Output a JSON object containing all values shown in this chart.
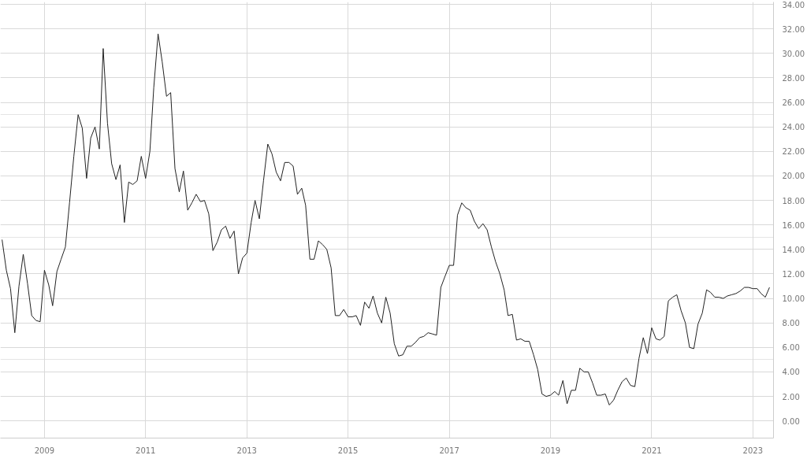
{
  "chart_data": {
    "type": "line",
    "x": [
      "2008-03",
      "2008-04",
      "2008-05",
      "2008-06",
      "2008-07",
      "2008-08",
      "2008-09",
      "2008-10",
      "2008-11",
      "2008-12",
      "2009-01",
      "2009-02",
      "2009-03",
      "2009-04",
      "2009-05",
      "2009-06",
      "2009-07",
      "2009-08",
      "2009-09",
      "2009-10",
      "2009-11",
      "2009-12",
      "2010-01",
      "2010-02",
      "2010-03",
      "2010-04",
      "2010-05",
      "2010-06",
      "2010-07",
      "2010-08",
      "2010-09",
      "2010-10",
      "2010-11",
      "2010-12",
      "2011-01",
      "2011-02",
      "2011-03",
      "2011-04",
      "2011-05",
      "2011-06",
      "2011-07",
      "2011-08",
      "2011-09",
      "2011-10",
      "2011-11",
      "2011-12",
      "2012-01",
      "2012-02",
      "2012-03",
      "2012-04",
      "2012-05",
      "2012-06",
      "2012-07",
      "2012-08",
      "2012-09",
      "2012-10",
      "2012-11",
      "2012-12",
      "2013-01",
      "2013-02",
      "2013-03",
      "2013-04",
      "2013-05",
      "2013-06",
      "2013-07",
      "2013-08",
      "2013-09",
      "2013-10",
      "2013-11",
      "2013-12",
      "2014-01",
      "2014-02",
      "2014-03",
      "2014-04",
      "2014-05",
      "2014-06",
      "2014-07",
      "2014-08",
      "2014-09",
      "2014-10",
      "2014-11",
      "2014-12",
      "2015-01",
      "2015-02",
      "2015-03",
      "2015-04",
      "2015-05",
      "2015-06",
      "2015-07",
      "2015-08",
      "2015-09",
      "2015-10",
      "2015-11",
      "2015-12",
      "2016-01",
      "2016-02",
      "2016-03",
      "2016-04",
      "2016-05",
      "2016-06",
      "2016-07",
      "2016-08",
      "2016-09",
      "2016-10",
      "2016-11",
      "2016-12",
      "2017-01",
      "2017-02",
      "2017-03",
      "2017-04",
      "2017-05",
      "2017-06",
      "2017-07",
      "2017-08",
      "2017-09",
      "2017-10",
      "2017-11",
      "2017-12",
      "2018-01",
      "2018-02",
      "2018-03",
      "2018-04",
      "2018-05",
      "2018-06",
      "2018-07",
      "2018-08",
      "2018-09",
      "2018-10",
      "2018-11",
      "2018-12",
      "2019-01",
      "2019-02",
      "2019-03",
      "2019-04",
      "2019-05",
      "2019-06",
      "2019-07",
      "2019-08",
      "2019-09",
      "2019-10",
      "2019-11",
      "2019-12",
      "2020-01",
      "2020-02",
      "2020-03",
      "2020-04",
      "2020-05",
      "2020-06",
      "2020-07",
      "2020-08",
      "2020-09",
      "2020-10",
      "2020-11",
      "2020-12",
      "2021-01",
      "2021-02",
      "2021-03",
      "2021-04",
      "2021-05",
      "2021-06",
      "2021-07",
      "2021-08",
      "2021-09",
      "2021-10",
      "2021-11",
      "2021-12",
      "2022-01",
      "2022-02",
      "2022-03",
      "2022-04",
      "2022-05",
      "2022-06",
      "2022-07",
      "2022-08",
      "2022-09",
      "2022-10",
      "2022-11",
      "2022-12",
      "2023-01",
      "2023-02",
      "2023-03",
      "2023-04",
      "2023-05"
    ],
    "series": [
      {
        "color": "#222222",
        "values": [
          14.8,
          12.3,
          10.8,
          7.2,
          11.0,
          13.6,
          11.2,
          8.6,
          8.2,
          8.1,
          12.3,
          11.1,
          9.4,
          12.2,
          13.2,
          14.2,
          17.8,
          21.6,
          25.0,
          23.9,
          19.8,
          23.1,
          24.0,
          22.2,
          30.4,
          24.3,
          21.0,
          19.7,
          20.9,
          16.2,
          19.5,
          19.3,
          19.6,
          21.6,
          19.8,
          22.0,
          27.2,
          31.6,
          29.3,
          26.5,
          26.8,
          20.6,
          18.7,
          20.4,
          17.2,
          17.8,
          18.5,
          17.9,
          18.0,
          16.9,
          13.9,
          14.6,
          15.6,
          15.9,
          14.9,
          15.5,
          12.0,
          13.3,
          13.7,
          16.2,
          18.0,
          16.5,
          19.6,
          22.6,
          21.8,
          20.3,
          19.6,
          21.1,
          21.1,
          20.8,
          18.5,
          19.0,
          17.6,
          13.2,
          13.2,
          14.7,
          14.4,
          14.0,
          12.5,
          8.6,
          8.6,
          9.1,
          8.5,
          8.5,
          8.6,
          7.8,
          9.7,
          9.2,
          10.2,
          8.8,
          8.0,
          10.1,
          8.8,
          6.3,
          5.3,
          5.4,
          6.1,
          6.1,
          6.4,
          6.8,
          6.9,
          7.2,
          7.1,
          7.0,
          10.9,
          11.8,
          12.7,
          12.7,
          16.8,
          17.8,
          17.4,
          17.2,
          16.3,
          15.7,
          16.1,
          15.6,
          14.2,
          13.0,
          12.0,
          10.7,
          8.6,
          8.7,
          6.6,
          6.7,
          6.5,
          6.5,
          5.4,
          4.2,
          2.2,
          2.0,
          2.1,
          2.4,
          2.1,
          3.3,
          1.4,
          2.5,
          2.5,
          4.3,
          4.0,
          4.0,
          3.1,
          2.1,
          2.1,
          2.2,
          1.3,
          1.7,
          2.5,
          3.2,
          3.5,
          2.9,
          2.8,
          5.1,
          6.8,
          5.5,
          7.6,
          6.7,
          6.6,
          6.9,
          9.8,
          10.1,
          10.3,
          9.0,
          8.0,
          6.0,
          5.9,
          7.9,
          8.8,
          10.7,
          10.5,
          10.1,
          10.1,
          10.0,
          10.2,
          10.3,
          10.4,
          10.6,
          10.9,
          10.9,
          10.8,
          10.8,
          10.4,
          10.1,
          10.9
        ]
      }
    ],
    "xlim": [
      "2008-02-18",
      "2023-05-30"
    ],
    "xticks": [
      "2009",
      "2011",
      "2013",
      "2015",
      "2017",
      "2019",
      "2021",
      "2023"
    ],
    "ylim": [
      -1.4,
      34.2
    ],
    "yticks": [
      {
        "value": 0,
        "label": "0.00"
      },
      {
        "value": 2,
        "label": "2.00"
      },
      {
        "value": 4,
        "label": "4.00"
      },
      {
        "value": 6,
        "label": "6.00"
      },
      {
        "value": 8,
        "label": "8.00"
      },
      {
        "value": 10,
        "label": "10.00"
      },
      {
        "value": 12,
        "label": "12.00"
      },
      {
        "value": 14,
        "label": "14.00"
      },
      {
        "value": 16,
        "label": "16.00"
      },
      {
        "value": 18,
        "label": "18.00"
      },
      {
        "value": 20,
        "label": "20.00"
      },
      {
        "value": 22,
        "label": "22.00"
      },
      {
        "value": 24,
        "label": "24.00"
      },
      {
        "value": 26,
        "label": "26.00"
      },
      {
        "value": 28,
        "label": "28.00"
      },
      {
        "value": 30,
        "label": "30.00"
      },
      {
        "value": 32,
        "label": "32.00"
      },
      {
        "value": 34,
        "label": "34.00"
      }
    ],
    "grid": true,
    "line_style": "solid"
  }
}
